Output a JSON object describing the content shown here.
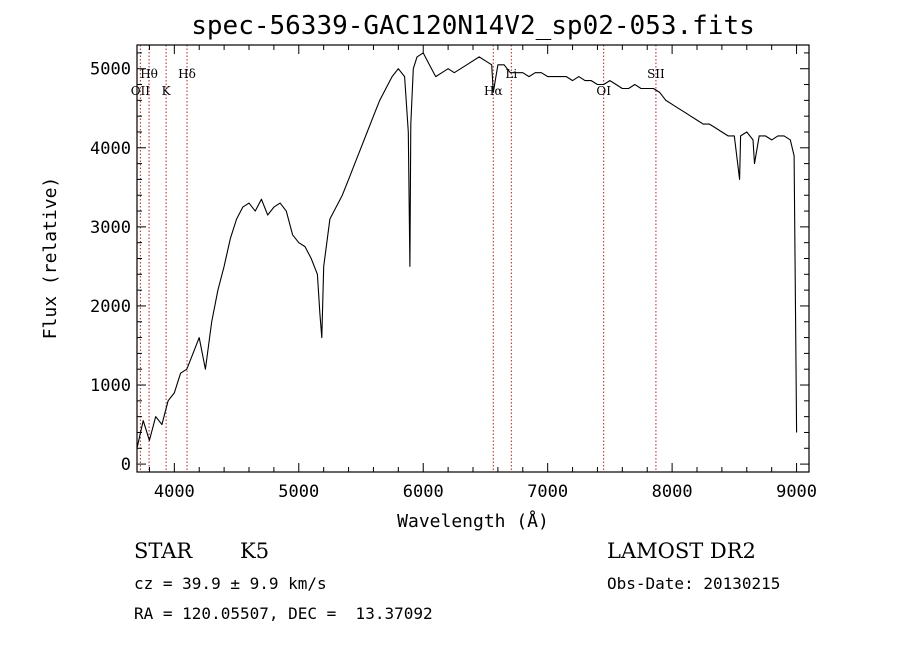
{
  "chart_data": {
    "type": "line",
    "title": "spec-56339-GAC120N14V2_sp02-053.fits",
    "xlabel": "Wavelength (Å)",
    "ylabel": "Flux (relative)",
    "xlim": [
      3700,
      9100
    ],
    "ylim": [
      -100,
      5300
    ],
    "xticks": [
      4000,
      5000,
      6000,
      7000,
      8000,
      9000
    ],
    "yticks": [
      0,
      1000,
      2000,
      3000,
      4000,
      5000
    ],
    "grid": false,
    "series": [
      {
        "x": [
          3700,
          3750,
          3800,
          3850,
          3900,
          3950,
          4000,
          4050,
          4100,
          4150,
          4200,
          4250,
          4300,
          4350,
          4400,
          4450,
          4500,
          4550,
          4600,
          4650,
          4700,
          4750,
          4800,
          4850,
          4900,
          4950,
          5000,
          5050,
          5100,
          5150,
          5170,
          5185,
          5200,
          5250,
          5300,
          5350,
          5400,
          5450,
          5500,
          5550,
          5600,
          5650,
          5700,
          5750,
          5800,
          5850,
          5880,
          5893,
          5900,
          5920,
          5950,
          6000,
          6050,
          6100,
          6150,
          6200,
          6250,
          6300,
          6350,
          6400,
          6450,
          6500,
          6550,
          6563,
          6600,
          6650,
          6700,
          6750,
          6800,
          6850,
          6900,
          6950,
          7000,
          7050,
          7100,
          7150,
          7200,
          7250,
          7300,
          7350,
          7400,
          7450,
          7500,
          7550,
          7600,
          7650,
          7700,
          7750,
          7800,
          7850,
          7900,
          7950,
          8000,
          8050,
          8100,
          8150,
          8200,
          8250,
          8300,
          8350,
          8400,
          8450,
          8500,
          8542,
          8550,
          8600,
          8650,
          8662,
          8700,
          8750,
          8800,
          8850,
          8900,
          8950,
          8980,
          9000
        ],
        "y": [
          200,
          550,
          300,
          600,
          500,
          800,
          900,
          1150,
          1200,
          1400,
          1600,
          1200,
          1800,
          2200,
          2500,
          2850,
          3100,
          3250,
          3300,
          3200,
          3350,
          3150,
          3250,
          3300,
          3200,
          2900,
          2800,
          2750,
          2600,
          2400,
          1900,
          1600,
          2500,
          3100,
          3250,
          3400,
          3600,
          3800,
          4000,
          4200,
          4400,
          4600,
          4750,
          4900,
          5000,
          4900,
          4200,
          2500,
          4300,
          5000,
          5150,
          5200,
          5050,
          4900,
          4950,
          5000,
          4950,
          5000,
          5050,
          5100,
          5150,
          5100,
          5050,
          4700,
          5050,
          5050,
          4950,
          4950,
          4950,
          4900,
          4950,
          4950,
          4900,
          4900,
          4900,
          4900,
          4850,
          4900,
          4850,
          4850,
          4800,
          4800,
          4850,
          4800,
          4750,
          4750,
          4800,
          4750,
          4750,
          4750,
          4700,
          4600,
          4550,
          4500,
          4450,
          4400,
          4350,
          4300,
          4300,
          4250,
          4200,
          4150,
          4150,
          3600,
          4150,
          4200,
          4100,
          3800,
          4150,
          4150,
          4100,
          4150,
          4150,
          4100,
          3900,
          400
        ]
      }
    ],
    "line_markers": [
      {
        "x": 3727,
        "label": "OII"
      },
      {
        "x": 3797,
        "label": "Hθ"
      },
      {
        "x": 3934,
        "label": "K"
      },
      {
        "x": 4102,
        "label": "Hδ"
      },
      {
        "x": 6563,
        "label": "Hα"
      },
      {
        "x": 6708,
        "label": "Li"
      },
      {
        "x": 7450,
        "label": "OI"
      },
      {
        "x": 7870,
        "label": "SII"
      }
    ]
  },
  "info": {
    "class_label": "STAR",
    "subclass": "K5",
    "survey": "LAMOST DR2",
    "cz_line": "cz = 39.9 ± 9.9 km/s",
    "obs_date_line": "Obs-Date: 20130215",
    "radec_line": "RA = 120.05507, DEC =  13.37092"
  }
}
